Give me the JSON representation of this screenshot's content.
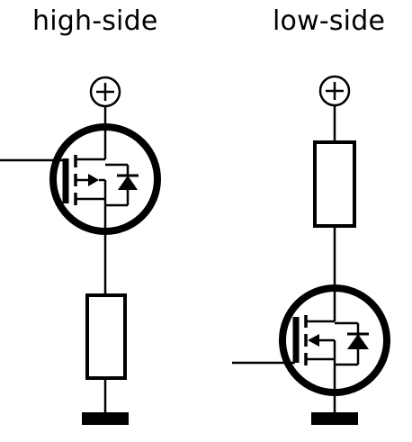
{
  "diagram": {
    "high_side": {
      "title": "high-side",
      "supply_symbol": "plus-terminal-icon",
      "ground_symbol": "ground-bar-icon"
    },
    "low_side": {
      "title": "low-side",
      "supply_symbol": "plus-terminal-icon",
      "ground_symbol": "ground-bar-icon"
    }
  }
}
